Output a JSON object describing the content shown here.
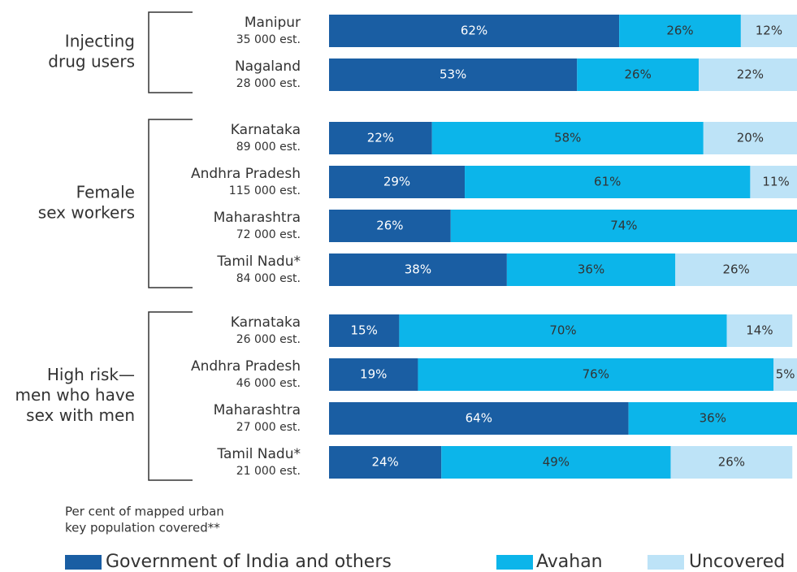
{
  "chart_data": [
    {
      "type": "bar",
      "title": [
        "Injecting",
        "drug users"
      ],
      "categories": [
        "Manipur",
        "Nagaland"
      ],
      "estimates": [
        "35 000 est.",
        "28 000 est."
      ],
      "xlim": [
        0,
        100
      ],
      "series": [
        {
          "name": "Government of India and others",
          "color": "#1a5ea3",
          "values": [
            62,
            53
          ],
          "value_labels": [
            "62%",
            "53%"
          ]
        },
        {
          "name": "Avahan",
          "color": "#0cb5ea",
          "values": [
            26,
            26
          ],
          "value_labels": [
            "26%",
            "26%"
          ]
        },
        {
          "name": "Uncovered",
          "color": "#bde3f7",
          "values": [
            12,
            22
          ],
          "value_labels": [
            "12%",
            "22%"
          ]
        }
      ]
    },
    {
      "type": "bar",
      "title": [
        "Female",
        "sex workers"
      ],
      "categories": [
        "Karnataka",
        "Andhra Pradesh",
        "Maharashtra",
        "Tamil Nadu*"
      ],
      "estimates": [
        "89 000 est.",
        "115 000 est.",
        "72 000 est.",
        "84 000 est."
      ],
      "xlim": [
        0,
        100
      ],
      "series": [
        {
          "name": "Government of India and others",
          "color": "#1a5ea3",
          "values": [
            22,
            29,
            26,
            38
          ],
          "value_labels": [
            "22%",
            "29%",
            "26%",
            "38%"
          ]
        },
        {
          "name": "Avahan",
          "color": "#0cb5ea",
          "values": [
            58,
            61,
            74,
            36
          ],
          "value_labels": [
            "58%",
            "61%",
            "74%",
            "36%"
          ]
        },
        {
          "name": "Uncovered",
          "color": "#bde3f7",
          "values": [
            20,
            11,
            0,
            26
          ],
          "value_labels": [
            "20%",
            "11%",
            null,
            "26%"
          ]
        }
      ]
    },
    {
      "type": "bar",
      "title": [
        "High risk—",
        "men who have",
        "sex with men"
      ],
      "categories": [
        "Karnataka",
        "Andhra Pradesh",
        "Maharashtra",
        "Tamil Nadu*"
      ],
      "estimates": [
        "26 000 est.",
        "46 000 est.",
        "27 000 est.",
        "21 000 est."
      ],
      "xlim": [
        0,
        100
      ],
      "series": [
        {
          "name": "Government of India and others",
          "color": "#1a5ea3",
          "values": [
            15,
            19,
            64,
            24
          ],
          "value_labels": [
            "15%",
            "19%",
            "64%",
            "24%"
          ]
        },
        {
          "name": "Avahan",
          "color": "#0cb5ea",
          "values": [
            70,
            76,
            36,
            49
          ],
          "value_labels": [
            "70%",
            "76%",
            "36%",
            "49%"
          ]
        },
        {
          "name": "Uncovered",
          "color": "#bde3f7",
          "values": [
            14,
            5,
            0,
            26
          ],
          "value_labels": [
            "14%",
            "5%",
            null,
            "26%"
          ]
        }
      ]
    }
  ],
  "note": [
    "Per cent of mapped urban",
    "key population covered**"
  ]
}
